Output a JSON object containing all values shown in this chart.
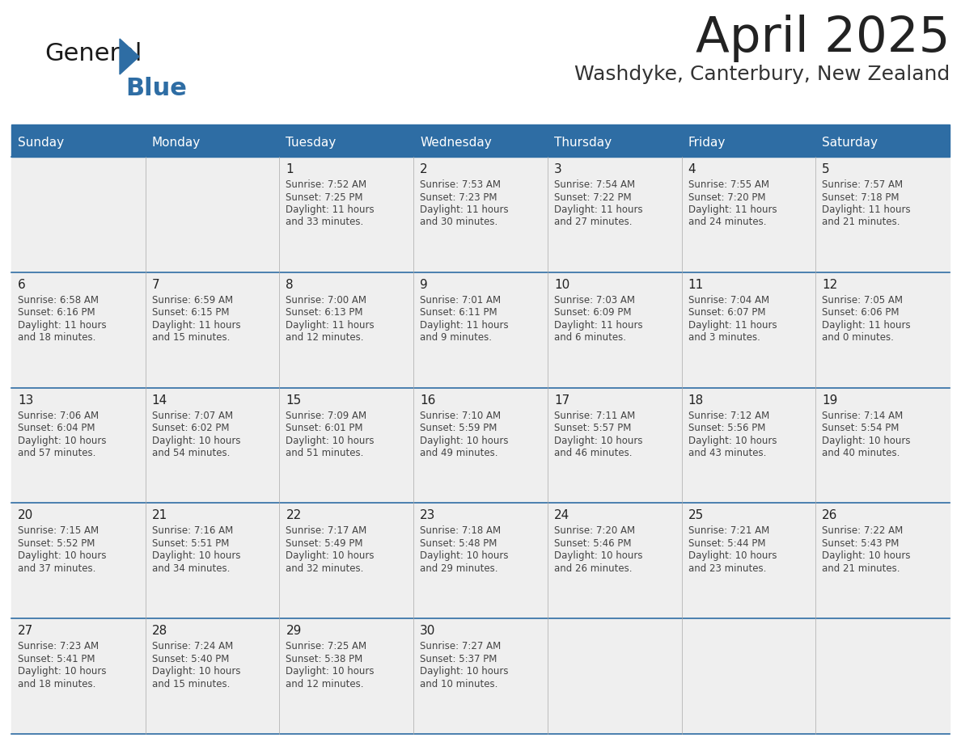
{
  "title": "April 2025",
  "subtitle": "Washdyke, Canterbury, New Zealand",
  "header_bg": "#2E6DA4",
  "header_text_color": "#FFFFFF",
  "cell_bg": "#EFEFEF",
  "border_color": "#2E6DA4",
  "day_names": [
    "Sunday",
    "Monday",
    "Tuesday",
    "Wednesday",
    "Thursday",
    "Friday",
    "Saturday"
  ],
  "title_color": "#222222",
  "subtitle_color": "#333333",
  "number_color": "#222222",
  "text_color": "#444444",
  "logo_general_color": "#1a1a1a",
  "logo_blue_color": "#2E6DA4",
  "weeks": [
    [
      {
        "day": 0,
        "date": "",
        "lines": []
      },
      {
        "day": 1,
        "date": "",
        "lines": []
      },
      {
        "day": 2,
        "date": "1",
        "lines": [
          "Sunrise: 7:52 AM",
          "Sunset: 7:25 PM",
          "Daylight: 11 hours",
          "and 33 minutes."
        ]
      },
      {
        "day": 3,
        "date": "2",
        "lines": [
          "Sunrise: 7:53 AM",
          "Sunset: 7:23 PM",
          "Daylight: 11 hours",
          "and 30 minutes."
        ]
      },
      {
        "day": 4,
        "date": "3",
        "lines": [
          "Sunrise: 7:54 AM",
          "Sunset: 7:22 PM",
          "Daylight: 11 hours",
          "and 27 minutes."
        ]
      },
      {
        "day": 5,
        "date": "4",
        "lines": [
          "Sunrise: 7:55 AM",
          "Sunset: 7:20 PM",
          "Daylight: 11 hours",
          "and 24 minutes."
        ]
      },
      {
        "day": 6,
        "date": "5",
        "lines": [
          "Sunrise: 7:57 AM",
          "Sunset: 7:18 PM",
          "Daylight: 11 hours",
          "and 21 minutes."
        ]
      }
    ],
    [
      {
        "day": 0,
        "date": "6",
        "lines": [
          "Sunrise: 6:58 AM",
          "Sunset: 6:16 PM",
          "Daylight: 11 hours",
          "and 18 minutes."
        ]
      },
      {
        "day": 1,
        "date": "7",
        "lines": [
          "Sunrise: 6:59 AM",
          "Sunset: 6:15 PM",
          "Daylight: 11 hours",
          "and 15 minutes."
        ]
      },
      {
        "day": 2,
        "date": "8",
        "lines": [
          "Sunrise: 7:00 AM",
          "Sunset: 6:13 PM",
          "Daylight: 11 hours",
          "and 12 minutes."
        ]
      },
      {
        "day": 3,
        "date": "9",
        "lines": [
          "Sunrise: 7:01 AM",
          "Sunset: 6:11 PM",
          "Daylight: 11 hours",
          "and 9 minutes."
        ]
      },
      {
        "day": 4,
        "date": "10",
        "lines": [
          "Sunrise: 7:03 AM",
          "Sunset: 6:09 PM",
          "Daylight: 11 hours",
          "and 6 minutes."
        ]
      },
      {
        "day": 5,
        "date": "11",
        "lines": [
          "Sunrise: 7:04 AM",
          "Sunset: 6:07 PM",
          "Daylight: 11 hours",
          "and 3 minutes."
        ]
      },
      {
        "day": 6,
        "date": "12",
        "lines": [
          "Sunrise: 7:05 AM",
          "Sunset: 6:06 PM",
          "Daylight: 11 hours",
          "and 0 minutes."
        ]
      }
    ],
    [
      {
        "day": 0,
        "date": "13",
        "lines": [
          "Sunrise: 7:06 AM",
          "Sunset: 6:04 PM",
          "Daylight: 10 hours",
          "and 57 minutes."
        ]
      },
      {
        "day": 1,
        "date": "14",
        "lines": [
          "Sunrise: 7:07 AM",
          "Sunset: 6:02 PM",
          "Daylight: 10 hours",
          "and 54 minutes."
        ]
      },
      {
        "day": 2,
        "date": "15",
        "lines": [
          "Sunrise: 7:09 AM",
          "Sunset: 6:01 PM",
          "Daylight: 10 hours",
          "and 51 minutes."
        ]
      },
      {
        "day": 3,
        "date": "16",
        "lines": [
          "Sunrise: 7:10 AM",
          "Sunset: 5:59 PM",
          "Daylight: 10 hours",
          "and 49 minutes."
        ]
      },
      {
        "day": 4,
        "date": "17",
        "lines": [
          "Sunrise: 7:11 AM",
          "Sunset: 5:57 PM",
          "Daylight: 10 hours",
          "and 46 minutes."
        ]
      },
      {
        "day": 5,
        "date": "18",
        "lines": [
          "Sunrise: 7:12 AM",
          "Sunset: 5:56 PM",
          "Daylight: 10 hours",
          "and 43 minutes."
        ]
      },
      {
        "day": 6,
        "date": "19",
        "lines": [
          "Sunrise: 7:14 AM",
          "Sunset: 5:54 PM",
          "Daylight: 10 hours",
          "and 40 minutes."
        ]
      }
    ],
    [
      {
        "day": 0,
        "date": "20",
        "lines": [
          "Sunrise: 7:15 AM",
          "Sunset: 5:52 PM",
          "Daylight: 10 hours",
          "and 37 minutes."
        ]
      },
      {
        "day": 1,
        "date": "21",
        "lines": [
          "Sunrise: 7:16 AM",
          "Sunset: 5:51 PM",
          "Daylight: 10 hours",
          "and 34 minutes."
        ]
      },
      {
        "day": 2,
        "date": "22",
        "lines": [
          "Sunrise: 7:17 AM",
          "Sunset: 5:49 PM",
          "Daylight: 10 hours",
          "and 32 minutes."
        ]
      },
      {
        "day": 3,
        "date": "23",
        "lines": [
          "Sunrise: 7:18 AM",
          "Sunset: 5:48 PM",
          "Daylight: 10 hours",
          "and 29 minutes."
        ]
      },
      {
        "day": 4,
        "date": "24",
        "lines": [
          "Sunrise: 7:20 AM",
          "Sunset: 5:46 PM",
          "Daylight: 10 hours",
          "and 26 minutes."
        ]
      },
      {
        "day": 5,
        "date": "25",
        "lines": [
          "Sunrise: 7:21 AM",
          "Sunset: 5:44 PM",
          "Daylight: 10 hours",
          "and 23 minutes."
        ]
      },
      {
        "day": 6,
        "date": "26",
        "lines": [
          "Sunrise: 7:22 AM",
          "Sunset: 5:43 PM",
          "Daylight: 10 hours",
          "and 21 minutes."
        ]
      }
    ],
    [
      {
        "day": 0,
        "date": "27",
        "lines": [
          "Sunrise: 7:23 AM",
          "Sunset: 5:41 PM",
          "Daylight: 10 hours",
          "and 18 minutes."
        ]
      },
      {
        "day": 1,
        "date": "28",
        "lines": [
          "Sunrise: 7:24 AM",
          "Sunset: 5:40 PM",
          "Daylight: 10 hours",
          "and 15 minutes."
        ]
      },
      {
        "day": 2,
        "date": "29",
        "lines": [
          "Sunrise: 7:25 AM",
          "Sunset: 5:38 PM",
          "Daylight: 10 hours",
          "and 12 minutes."
        ]
      },
      {
        "day": 3,
        "date": "30",
        "lines": [
          "Sunrise: 7:27 AM",
          "Sunset: 5:37 PM",
          "Daylight: 10 hours",
          "and 10 minutes."
        ]
      },
      {
        "day": 4,
        "date": "",
        "lines": []
      },
      {
        "day": 5,
        "date": "",
        "lines": []
      },
      {
        "day": 6,
        "date": "",
        "lines": []
      }
    ]
  ]
}
